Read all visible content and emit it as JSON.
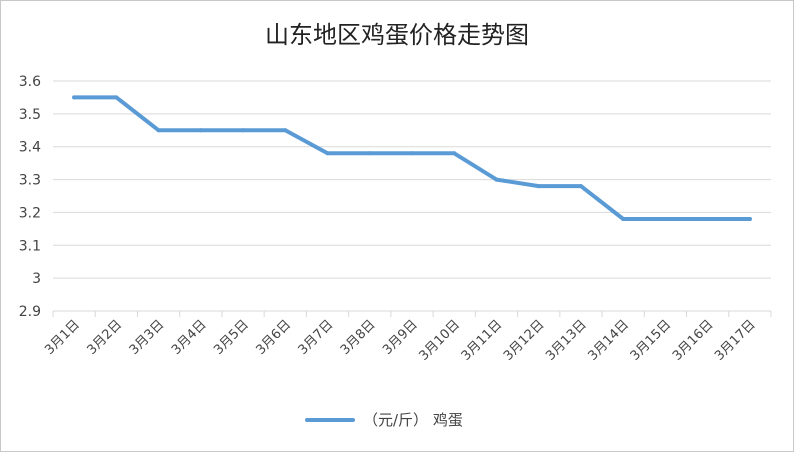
{
  "chart_data": {
    "type": "line",
    "title": "山东地区鸡蛋价格走势图",
    "categories": [
      "3月1日",
      "3月2日",
      "3月3日",
      "3月4日",
      "3月5日",
      "3月6日",
      "3月7日",
      "3月8日",
      "3月9日",
      "3月10日",
      "3月11日",
      "3月12日",
      "3月13日",
      "3月14日",
      "3月15日",
      "3月16日",
      "3月17日"
    ],
    "series": [
      {
        "name": "（元/斤） 鸡蛋",
        "color": "#5b9bd5",
        "values": [
          3.55,
          3.55,
          3.45,
          3.45,
          3.45,
          3.45,
          3.38,
          3.38,
          3.38,
          3.38,
          3.3,
          3.28,
          3.28,
          3.18,
          3.18,
          3.18,
          3.18
        ]
      }
    ],
    "y_ticks": [
      "2.9",
      "3",
      "3.1",
      "3.2",
      "3.3",
      "3.4",
      "3.5",
      "3.6"
    ],
    "ylim": [
      2.9,
      3.6
    ],
    "grid": true,
    "legend_position": "bottom"
  }
}
